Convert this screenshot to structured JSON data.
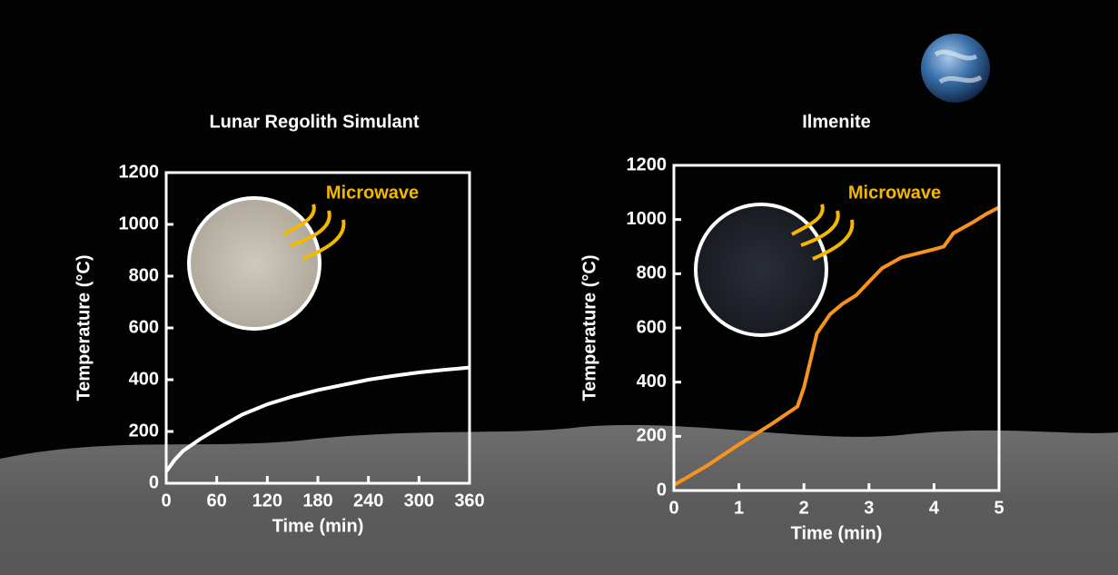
{
  "chart_data": [
    {
      "type": "line",
      "title": "Lunar Regolith Simulant",
      "xlabel": "Time (min)",
      "ylabel": "Temperature (°C)",
      "annotation": "Microwave",
      "x": [
        0,
        10,
        20,
        40,
        60,
        90,
        120,
        150,
        180,
        210,
        240,
        270,
        300,
        330,
        360
      ],
      "values": [
        45,
        90,
        125,
        170,
        210,
        265,
        305,
        335,
        360,
        380,
        400,
        415,
        428,
        438,
        447
      ],
      "color": "#ffffff",
      "xlim": [
        0,
        360
      ],
      "xticks": [
        0,
        60,
        120,
        180,
        240,
        300,
        360
      ],
      "ylim": [
        0,
        1200
      ],
      "yticks": [
        0,
        200,
        400,
        600,
        800,
        1000,
        1200
      ]
    },
    {
      "type": "line",
      "title": "Ilmenite",
      "xlabel": "Time (min)",
      "ylabel": "Temperature (°C)",
      "annotation": "Microwave",
      "x": [
        0,
        0.5,
        1,
        1.5,
        1.9,
        2.0,
        2.1,
        2.2,
        2.4,
        2.6,
        2.8,
        3.0,
        3.2,
        3.5,
        4.0,
        4.15,
        4.3,
        4.6,
        4.8,
        5.0
      ],
      "values": [
        20,
        90,
        170,
        245,
        310,
        380,
        480,
        580,
        650,
        690,
        720,
        770,
        820,
        860,
        890,
        900,
        950,
        990,
        1020,
        1045
      ],
      "color": "#f7931e",
      "xlim": [
        0,
        5
      ],
      "xticks": [
        0,
        1,
        2,
        3,
        4,
        5
      ],
      "ylim": [
        0,
        1200
      ],
      "yticks": [
        0,
        200,
        400,
        600,
        800,
        1000,
        1200
      ]
    }
  ]
}
